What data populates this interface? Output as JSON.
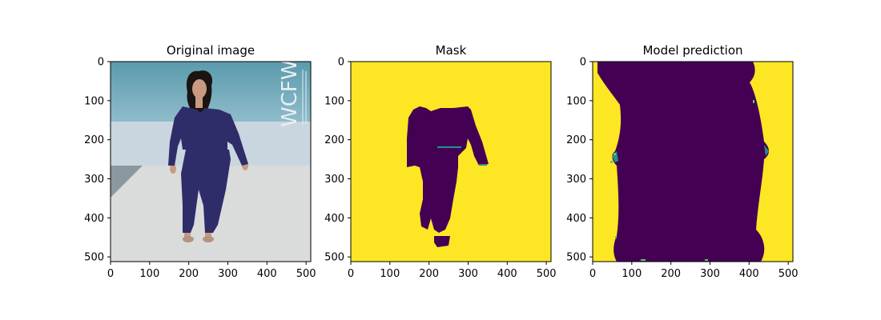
{
  "figure": {
    "background": "#ffffff"
  },
  "chart_data": [
    {
      "type": "image",
      "title": "Original image",
      "xlim": [
        0,
        512
      ],
      "ylim": [
        512,
        0
      ],
      "xticks": [
        0,
        100,
        200,
        300,
        400,
        500
      ],
      "yticks": [
        0,
        100,
        200,
        300,
        400,
        500
      ],
      "image": {
        "wall_color_top": "#5a9bad",
        "wall_color_bottom": "#c9d6e0",
        "runway_color": "#d9dcda",
        "outfit_color": "#2e2d6a",
        "skin_color": "#c99a82",
        "hair_color": "#1a1512",
        "watermark_text": "WCFW",
        "watermark_color": "#e8eef2"
      }
    },
    {
      "type": "heatmap",
      "title": "Mask",
      "xlim": [
        0,
        512
      ],
      "ylim": [
        512,
        0
      ],
      "xticks": [
        0,
        100,
        200,
        300,
        400,
        500
      ],
      "yticks": [
        0,
        100,
        200,
        300,
        400,
        500
      ],
      "colormap": "viridis",
      "background_color": "#fde725",
      "foreground_color": "#440154",
      "edge_color": "#21918c",
      "foreground_label": "person"
    },
    {
      "type": "heatmap",
      "title": "Model prediction",
      "xlim": [
        0,
        512
      ],
      "ylim": [
        512,
        0
      ],
      "xticks": [
        0,
        100,
        200,
        300,
        400,
        500
      ],
      "yticks": [
        0,
        100,
        200,
        300,
        400,
        500
      ],
      "colormap": "viridis",
      "background_color": "#fde725",
      "foreground_color": "#440154",
      "edge_color": "#21918c",
      "speckle_color": "#5ec962"
    }
  ]
}
